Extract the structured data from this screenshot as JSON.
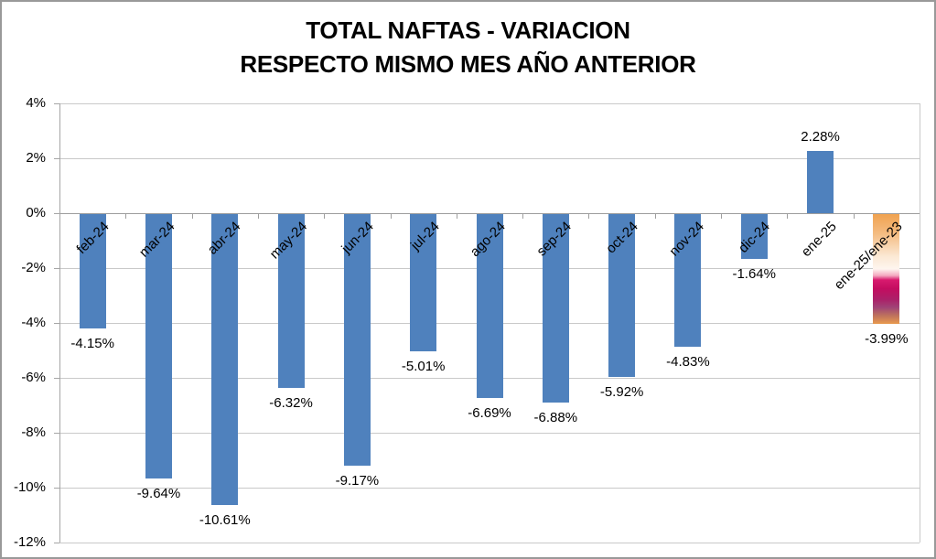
{
  "title": {
    "line1": "TOTAL NAFTAS - VARIACION",
    "line2": "RESPECTO MISMO MES AÑO ANTERIOR"
  },
  "chart_data": {
    "type": "bar",
    "title": "TOTAL NAFTAS - VARIACION RESPECTO MISMO MES AÑO ANTERIOR",
    "title_lines": [
      "TOTAL NAFTAS - VARIACION",
      "RESPECTO MISMO MES AÑO ANTERIOR"
    ],
    "categories": [
      "feb-24",
      "mar-24",
      "abr-24",
      "may-24",
      "jun-24",
      "jul-24",
      "ago-24",
      "sep-24",
      "oct-24",
      "nov-24",
      "dic-24",
      "ene-25",
      "ene-25/ene-23"
    ],
    "values": [
      -4.15,
      -9.64,
      -10.61,
      -6.32,
      -9.17,
      -5.01,
      -6.69,
      -6.88,
      -5.92,
      -4.83,
      -1.64,
      2.28,
      -3.99
    ],
    "data_labels": [
      "-4.15%",
      "-9.64%",
      "-10.61%",
      "-6.32%",
      "-9.17%",
      "-5.01%",
      "-6.69%",
      "-6.88%",
      "-5.92%",
      "-4.83%",
      "-1.64%",
      "2.28%",
      "-3.99%"
    ],
    "xlabel": "",
    "ylabel": "",
    "ylim": [
      -12,
      4
    ],
    "ytick_step": 2,
    "ytick_labels": [
      "4%",
      "2%",
      "0%",
      "-2%",
      "-4%",
      "-6%",
      "-8%",
      "-10%",
      "-12%"
    ],
    "grid": true,
    "legend": "none",
    "category_label_angle_deg": -45,
    "bar_color": "#4F81BD",
    "special_bar": {
      "index": 12,
      "description": "year-over-two-years comparison bar with multicolor gradient fill",
      "gradient_stops": [
        [
          0.0,
          "#F0A250"
        ],
        [
          0.18,
          "#F4BC82"
        ],
        [
          0.38,
          "#FBE8D3"
        ],
        [
          0.5,
          "#FEF5EF"
        ],
        [
          0.56,
          "#F4A8C0"
        ],
        [
          0.6,
          "#D81A6E"
        ],
        [
          0.68,
          "#C30D60"
        ],
        [
          0.78,
          "#AB2169"
        ],
        [
          0.85,
          "#A04376"
        ],
        [
          0.92,
          "#BC6F5E"
        ],
        [
          1.0,
          "#E89A4E"
        ]
      ]
    },
    "colors": {
      "grid": "#C9C9C9",
      "axis": "#A6A6A6",
      "zero_axis": "#9E9E9E",
      "text": "#000000",
      "frame_border": "#999999",
      "background": "#FFFFFF"
    }
  }
}
